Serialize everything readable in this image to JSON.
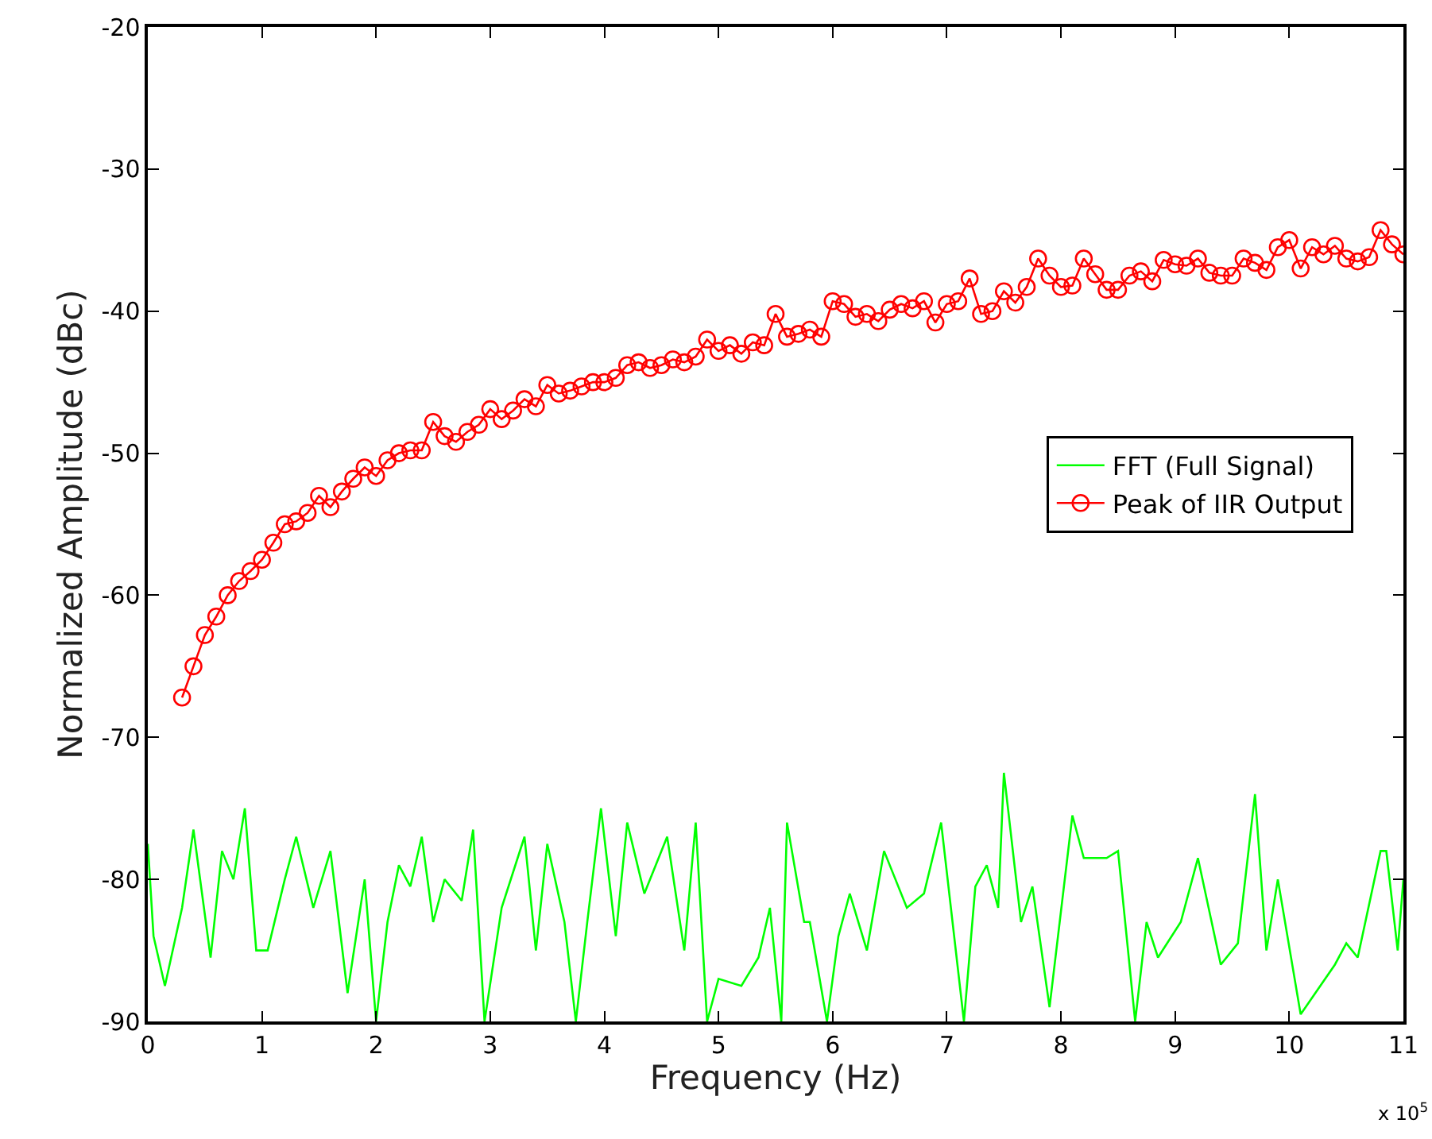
{
  "chart_data": {
    "type": "line",
    "xlabel": "Frequency (Hz)",
    "ylabel": "Normalized Amplitude (dBc)",
    "xlim": [
      0,
      11
    ],
    "ylim": [
      -90,
      -20
    ],
    "xticks": [
      0,
      1,
      2,
      3,
      4,
      5,
      6,
      7,
      8,
      9,
      10,
      11
    ],
    "yticks": [
      -90,
      -80,
      -70,
      -60,
      -50,
      -40,
      -30,
      -20
    ],
    "legend": "right",
    "annotations": [
      "x 10$^{5}$"
    ],
    "series": [
      {
        "name": "FFT (Full Signal)",
        "color": "#00ff00",
        "marker": "none",
        "x": [
          0,
          0.05,
          0.15,
          0.3,
          0.4,
          0.55,
          0.65,
          0.75,
          0.85,
          0.95,
          1.05,
          1.2,
          1.3,
          1.45,
          1.6,
          1.75,
          1.9,
          2.0,
          2.1,
          2.2,
          2.3,
          2.4,
          2.5,
          2.6,
          2.75,
          2.85,
          2.95,
          3.1,
          3.3,
          3.4,
          3.5,
          3.65,
          3.75,
          3.85,
          3.97,
          4.1,
          4.2,
          4.35,
          4.45,
          4.55,
          4.7,
          4.8,
          4.9,
          5.0,
          5.2,
          5.35,
          5.45,
          5.55,
          5.6,
          5.75,
          5.8,
          5.95,
          6.05,
          6.15,
          6.3,
          6.45,
          6.65,
          6.8,
          6.95,
          7.15,
          7.25,
          7.35,
          7.45,
          7.5,
          7.65,
          7.75,
          7.9,
          8.1,
          8.2,
          8.4,
          8.5,
          8.65,
          8.75,
          8.85,
          9.05,
          9.2,
          9.4,
          9.55,
          9.7,
          9.8,
          9.9,
          10.1,
          10.4,
          10.5,
          10.6,
          10.8,
          10.85,
          10.95,
          11.0
        ],
        "values": [
          -77.5,
          -84,
          -87.5,
          -82,
          -76.5,
          -85.5,
          -78,
          -80,
          -75,
          -85,
          -85,
          -80,
          -77,
          -82,
          -78,
          -88,
          -80,
          -90,
          -83,
          -79,
          -80.5,
          -77,
          -83,
          -80,
          -81.5,
          -76.5,
          -90,
          -82,
          -77,
          -85,
          -77.5,
          -83,
          -90,
          -83,
          -75,
          -84,
          -76,
          -81,
          -79,
          -77,
          -85,
          -76,
          -90,
          -87,
          -87.5,
          -85.5,
          -82,
          -90,
          -76,
          -83,
          -83,
          -90,
          -84,
          -81,
          -85,
          -78,
          -82,
          -81,
          -76,
          -90,
          -80.5,
          -79,
          -82,
          -72.5,
          -83,
          -80.5,
          -89,
          -75.5,
          -78.5,
          -78.5,
          -78,
          -90,
          -83,
          -85.5,
          -83,
          -78.5,
          -86,
          -84.5,
          -74,
          -85,
          -80,
          -89.5,
          -86,
          -84.5,
          -85.5,
          -78,
          -78,
          -85,
          -80
        ]
      },
      {
        "name": "Peak of IIR Output",
        "color": "#ff0000",
        "marker": "circle",
        "x": [
          0.3,
          0.4,
          0.5,
          0.6,
          0.7,
          0.8,
          0.9,
          1.0,
          1.1,
          1.2,
          1.3,
          1.4,
          1.5,
          1.6,
          1.7,
          1.8,
          1.9,
          2.0,
          2.1,
          2.2,
          2.3,
          2.4,
          2.5,
          2.6,
          2.7,
          2.8,
          2.9,
          3.0,
          3.1,
          3.2,
          3.3,
          3.4,
          3.5,
          3.6,
          3.7,
          3.8,
          3.9,
          4.0,
          4.1,
          4.2,
          4.3,
          4.4,
          4.5,
          4.6,
          4.7,
          4.8,
          4.9,
          5.0,
          5.1,
          5.2,
          5.3,
          5.4,
          5.5,
          5.6,
          5.7,
          5.8,
          5.9,
          6.0,
          6.1,
          6.2,
          6.3,
          6.4,
          6.5,
          6.6,
          6.7,
          6.8,
          6.9,
          7.0,
          7.1,
          7.2,
          7.3,
          7.4,
          7.5,
          7.6,
          7.7,
          7.8,
          7.9,
          8.0,
          8.1,
          8.2,
          8.3,
          8.4,
          8.5,
          8.6,
          8.7,
          8.8,
          8.9,
          9.0,
          9.1,
          9.2,
          9.3,
          9.4,
          9.5,
          9.6,
          9.7,
          9.8,
          9.9,
          10.0,
          10.1,
          10.2,
          10.3,
          10.4,
          10.5,
          10.6,
          10.7,
          10.8,
          10.9,
          11.0
        ],
        "values": [
          -67.2,
          -65,
          -62.8,
          -61.5,
          -60,
          -59,
          -58.3,
          -57.5,
          -56.3,
          -55,
          -54.8,
          -54.2,
          -53,
          -53.8,
          -52.7,
          -51.8,
          -51,
          -51.6,
          -50.5,
          -50,
          -49.8,
          -49.8,
          -47.8,
          -48.8,
          -49.2,
          -48.5,
          -48,
          -46.9,
          -47.6,
          -47,
          -46.2,
          -46.7,
          -45.2,
          -45.8,
          -45.6,
          -45.3,
          -45,
          -45,
          -44.7,
          -43.8,
          -43.6,
          -44,
          -43.8,
          -43.4,
          -43.6,
          -43.2,
          -42,
          -42.8,
          -42.4,
          -43,
          -42.2,
          -42.4,
          -40.2,
          -41.8,
          -41.6,
          -41.3,
          -41.8,
          -39.3,
          -39.5,
          -40.4,
          -40.2,
          -40.7,
          -39.9,
          -39.5,
          -39.8,
          -39.3,
          -40.8,
          -39.5,
          -39.3,
          -37.7,
          -40.2,
          -40,
          -38.6,
          -39.4,
          -38.3,
          -36.3,
          -37.5,
          -38.3,
          -38.2,
          -36.3,
          -37.4,
          -38.5,
          -38.5,
          -37.5,
          -37.2,
          -37.9,
          -36.4,
          -36.7,
          -36.8,
          -36.3,
          -37.3,
          -37.5,
          -37.5,
          -36.3,
          -36.6,
          -37.1,
          -35.5,
          -35,
          -37,
          -35.5,
          -36,
          -35.4,
          -36.3,
          -36.5,
          -36.2,
          -34.3,
          -35.3,
          -36
        ]
      }
    ]
  }
}
